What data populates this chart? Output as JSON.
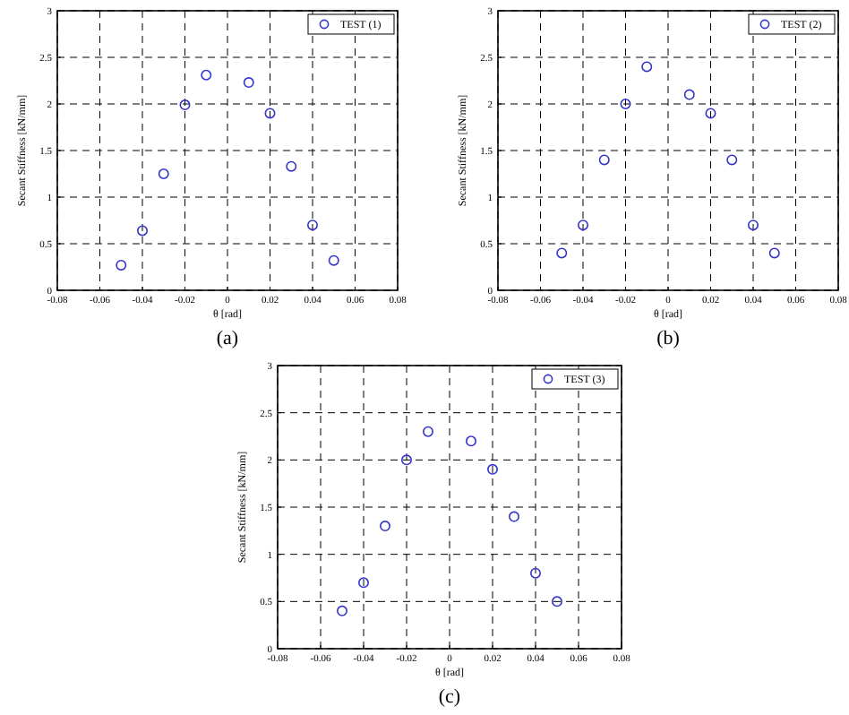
{
  "chart_data": [
    {
      "type": "scatter",
      "xlabel": "θ [rad]",
      "ylabel": "Secant Stiffness [kN/mm]",
      "annotations": [
        "(a)"
      ],
      "x": [
        -0.05,
        -0.04,
        -0.03,
        -0.02,
        -0.01,
        0.01,
        0.02,
        0.03,
        0.04,
        0.05
      ],
      "series": [
        {
          "name": "TEST (1)",
          "color": "#3333cc",
          "values": [
            0.27,
            0.64,
            1.25,
            1.99,
            2.31,
            2.23,
            1.9,
            1.33,
            0.7,
            0.32
          ]
        }
      ],
      "xlim": [
        -0.08,
        0.08
      ],
      "xticks": [
        -0.08,
        -0.06,
        -0.04,
        -0.02,
        0,
        0.02,
        0.04,
        0.06,
        0.08
      ],
      "ylim": [
        0,
        3
      ],
      "yticks": [
        0,
        0.5,
        1,
        1.5,
        2,
        2.5,
        3
      ],
      "grid": true,
      "legend": "top right",
      "marker": "circle"
    },
    {
      "type": "scatter",
      "xlabel": "θ [rad]",
      "ylabel": "Secant Stiffness [kN/mm]",
      "annotations": [
        "(b)"
      ],
      "x": [
        -0.05,
        -0.04,
        -0.03,
        -0.02,
        -0.01,
        0.01,
        0.02,
        0.03,
        0.04,
        0.05
      ],
      "series": [
        {
          "name": "TEST (2)",
          "color": "#3333cc",
          "values": [
            0.4,
            0.7,
            1.4,
            2.0,
            2.4,
            2.1,
            1.9,
            1.4,
            0.7,
            0.4
          ]
        }
      ],
      "xlim": [
        -0.08,
        0.08
      ],
      "xticks": [
        -0.08,
        -0.06,
        -0.04,
        -0.02,
        0,
        0.02,
        0.04,
        0.06,
        0.08
      ],
      "ylim": [
        0,
        3
      ],
      "yticks": [
        0,
        0.5,
        1,
        1.5,
        2,
        2.5,
        3
      ],
      "grid": true,
      "legend": "top right",
      "marker": "circle"
    },
    {
      "type": "scatter",
      "xlabel": "θ [rad]",
      "ylabel": "Secant Stiffness [kN/mm]",
      "annotations": [
        "(c)"
      ],
      "x": [
        -0.05,
        -0.04,
        -0.03,
        -0.02,
        -0.01,
        0.01,
        0.02,
        0.03,
        0.04,
        0.05
      ],
      "series": [
        {
          "name": "TEST (3)",
          "color": "#3333cc",
          "values": [
            0.4,
            0.7,
            1.3,
            2.0,
            2.3,
            2.2,
            1.9,
            1.4,
            0.8,
            0.5
          ]
        }
      ],
      "xlim": [
        -0.08,
        0.08
      ],
      "xticks": [
        -0.08,
        -0.06,
        -0.04,
        -0.02,
        0,
        0.02,
        0.04,
        0.06,
        0.08
      ],
      "ylim": [
        0,
        3
      ],
      "yticks": [
        0,
        0.5,
        1,
        1.5,
        2,
        2.5,
        3
      ],
      "grid": true,
      "legend": "top right",
      "marker": "circle"
    }
  ]
}
